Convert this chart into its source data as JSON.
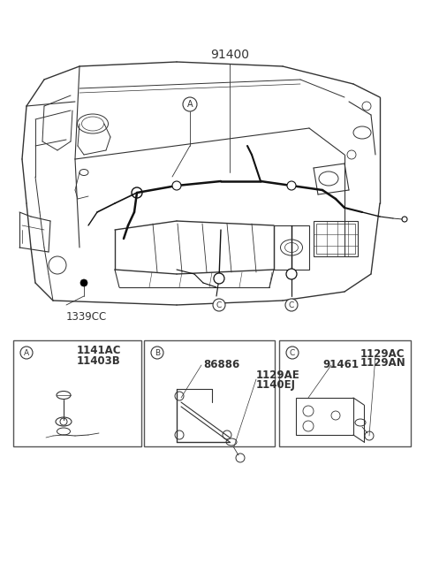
{
  "bg_color": "#ffffff",
  "line_color": "#333333",
  "thick_line": "#111111",
  "label_91400": "91400",
  "label_1339CC": "1339CC",
  "label_A_1": "1141AC",
  "label_A_2": "11403B",
  "label_B_1": "86886",
  "label_B_2": "1129AE",
  "label_B_3": "1140EJ",
  "label_C_1": "91461",
  "label_C_2": "1129AC",
  "label_C_3": "1129AN",
  "figsize": [
    4.8,
    6.55
  ],
  "dpi": 100
}
